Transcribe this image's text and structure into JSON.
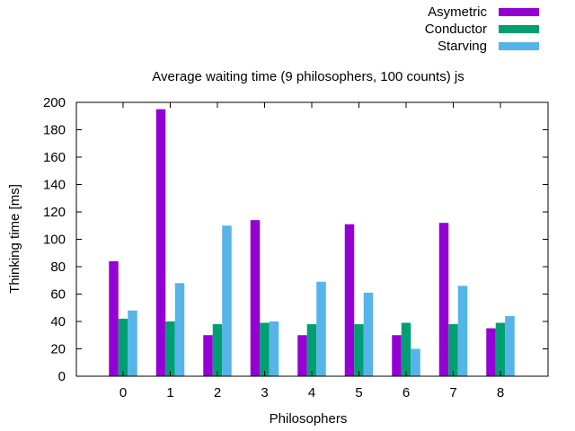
{
  "chart_data": {
    "type": "bar",
    "title": "Average waiting time (9 philosophers, 100 counts) js",
    "xlabel": "Philosophers",
    "ylabel": "Thinking time [ms]",
    "ylim": [
      0,
      200
    ],
    "yticks": [
      0,
      20,
      40,
      60,
      80,
      100,
      120,
      140,
      160,
      180,
      200
    ],
    "categories": [
      "0",
      "1",
      "2",
      "3",
      "4",
      "5",
      "6",
      "7",
      "8"
    ],
    "grid": false,
    "legend_position": "top-right, outside plot",
    "series": [
      {
        "name": "Asymetric",
        "color": "#9400d3",
        "values": [
          84,
          195,
          30,
          114,
          30,
          111,
          30,
          112,
          35
        ]
      },
      {
        "name": "Conductor",
        "color": "#009e73",
        "values": [
          42,
          40,
          38,
          39,
          38,
          38,
          39,
          38,
          39
        ]
      },
      {
        "name": "Starving",
        "color": "#56b4e9",
        "values": [
          48,
          68,
          110,
          40,
          69,
          61,
          20,
          66,
          44
        ]
      }
    ]
  }
}
